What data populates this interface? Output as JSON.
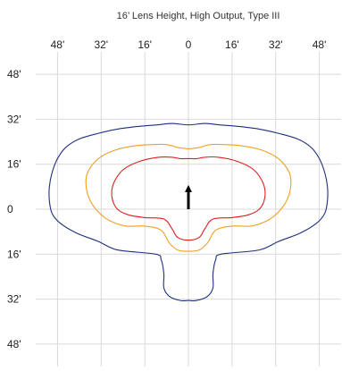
{
  "chart_data": {
    "type": "line",
    "title": "16’ Lens Height, High Output,  Type III",
    "x_tick_labels": [
      "48'",
      "32'",
      "16'",
      "0",
      "16'",
      "32'",
      "48'"
    ],
    "x_tick_values": [
      -48,
      -32,
      -16,
      0,
      16,
      32,
      48
    ],
    "y_tick_labels": [
      "48'",
      "32'",
      "16'",
      "0",
      "16'",
      "32'",
      "48'"
    ],
    "y_tick_values": [
      48,
      32,
      16,
      0,
      -16,
      -32,
      -48
    ],
    "xlim": [
      -56,
      56
    ],
    "ylim": [
      -56,
      56
    ],
    "grid": true,
    "legend": "none",
    "arrow": {
      "x": 0,
      "from_y": 0,
      "to_y": 8,
      "color": "#000000"
    },
    "series": [
      {
        "color": "#1f2f7f",
        "points": [
          [
            -11.5,
            30
          ],
          [
            -6,
            30.5
          ],
          [
            0,
            30
          ],
          [
            6,
            30.5
          ],
          [
            11.5,
            30
          ],
          [
            18,
            29.5
          ],
          [
            26,
            28.5
          ],
          [
            33,
            27
          ],
          [
            40,
            25
          ],
          [
            45,
            22
          ],
          [
            48,
            18
          ],
          [
            50,
            13
          ],
          [
            51,
            8
          ],
          [
            51,
            3
          ],
          [
            50,
            -1.5
          ],
          [
            47,
            -5
          ],
          [
            41,
            -8.5
          ],
          [
            33,
            -11.5
          ],
          [
            26,
            -14.5
          ],
          [
            12,
            -16
          ],
          [
            10,
            -18
          ],
          [
            9,
            -23
          ],
          [
            9,
            -28
          ],
          [
            7,
            -31
          ],
          [
            3,
            -32.5
          ],
          [
            0,
            -32.5
          ],
          [
            -3,
            -32.5
          ],
          [
            -7,
            -31
          ],
          [
            -9,
            -28
          ],
          [
            -9,
            -23
          ],
          [
            -10,
            -18
          ],
          [
            -12,
            -16
          ],
          [
            -26,
            -14.5
          ],
          [
            -33,
            -11.5
          ],
          [
            -41,
            -8.5
          ],
          [
            -47,
            -5
          ],
          [
            -50,
            -1.5
          ],
          [
            -51,
            3
          ],
          [
            -51,
            8
          ],
          [
            -50,
            13
          ],
          [
            -48,
            18
          ],
          [
            -45,
            22
          ],
          [
            -40,
            25
          ],
          [
            -33,
            27
          ],
          [
            -26,
            28.5
          ],
          [
            -18,
            29.5
          ]
        ]
      },
      {
        "color": "#f0a020",
        "points": [
          [
            -8,
            23
          ],
          [
            -4,
            22
          ],
          [
            0,
            21.5
          ],
          [
            4,
            22
          ],
          [
            8,
            23
          ],
          [
            13,
            23
          ],
          [
            20,
            22.5
          ],
          [
            27,
            21
          ],
          [
            33,
            18
          ],
          [
            37,
            13
          ],
          [
            37.5,
            8
          ],
          [
            36,
            3
          ],
          [
            33,
            -1
          ],
          [
            29,
            -4
          ],
          [
            23,
            -6
          ],
          [
            16,
            -6
          ],
          [
            10,
            -7.5
          ],
          [
            7,
            -12
          ],
          [
            4,
            -14.5
          ],
          [
            0,
            -15
          ],
          [
            -4,
            -14.5
          ],
          [
            -7,
            -12
          ],
          [
            -10,
            -7.5
          ],
          [
            -16,
            -6
          ],
          [
            -23,
            -6
          ],
          [
            -29,
            -4
          ],
          [
            -33,
            -1
          ],
          [
            -36,
            3
          ],
          [
            -37.5,
            8
          ],
          [
            -37,
            13
          ],
          [
            -33,
            18
          ],
          [
            -27,
            21
          ],
          [
            -20,
            22.5
          ],
          [
            -13,
            23
          ]
        ]
      },
      {
        "color": "#dd2020",
        "points": [
          [
            -6,
            18.5
          ],
          [
            -3,
            18
          ],
          [
            0,
            18
          ],
          [
            3,
            18
          ],
          [
            6,
            18.5
          ],
          [
            11,
            18.5
          ],
          [
            18,
            17
          ],
          [
            24,
            14
          ],
          [
            27.5,
            9
          ],
          [
            28,
            4
          ],
          [
            26,
            0
          ],
          [
            22,
            -2
          ],
          [
            16,
            -3
          ],
          [
            9,
            -3.5
          ],
          [
            6,
            -7
          ],
          [
            4,
            -10
          ],
          [
            0,
            -11
          ],
          [
            -4,
            -10
          ],
          [
            -6,
            -7
          ],
          [
            -9,
            -3.5
          ],
          [
            -16,
            -3
          ],
          [
            -22,
            -2
          ],
          [
            -26,
            0
          ],
          [
            -28,
            4
          ],
          [
            -27.5,
            9
          ],
          [
            -24,
            14
          ],
          [
            -18,
            17
          ],
          [
            -11,
            18.5
          ]
        ]
      }
    ]
  }
}
